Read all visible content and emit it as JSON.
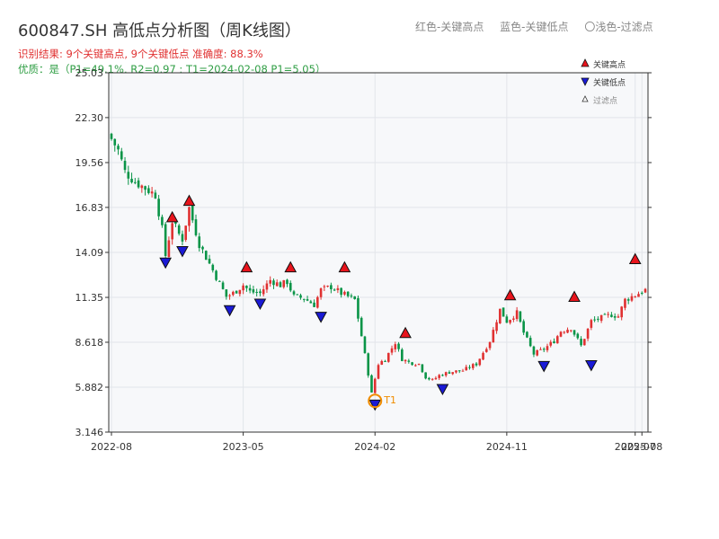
{
  "header": {
    "title": "600847.SH 高低点分析图（周K线图）",
    "result_line": "识别结果: 9个关键高点, 9个关键低点  准确度: 88.3%",
    "quality_line": "优质：是（P1=49.1%, R2=0.97 ; T1=2024-02-08 P1=5.05）"
  },
  "top_legend": {
    "red": "红色-关键高点",
    "blue": "蓝色-关键低点",
    "light": "〇浅色-过滤点"
  },
  "colors": {
    "up": "#e03131",
    "down": "#099447",
    "high_marker": "#e8141c",
    "low_marker": "#1a1ad6",
    "t1_ring": "#f08c00",
    "plot_bg": "#f7f8fa",
    "grid": "#e2e5ea",
    "axis": "#333333"
  },
  "chart_data": {
    "type": "candlestick",
    "x_tick_labels": [
      "2022-08",
      "2023-05",
      "2024-02",
      "2024-11",
      "2025-07",
      "2025-08"
    ],
    "x_ticks": [
      {
        "label": "2022-08",
        "week": 0
      },
      {
        "label": "2023-05",
        "week": 39
      },
      {
        "label": "2024-02",
        "week": 78
      },
      {
        "label": "2024-11",
        "week": 117
      },
      {
        "label": "2025-07",
        "week": 155
      },
      {
        "label": "2025-08",
        "week": 157
      }
    ],
    "x_range": [
      0,
      158
    ],
    "y_ticks": [
      "3.146",
      "5.882",
      "8.618",
      "11.35",
      "14.09",
      "16.83",
      "19.56",
      "22.30",
      "25.03"
    ],
    "ylim": [
      3.146,
      25.03
    ],
    "grid": true,
    "legend": {
      "position": "top-right",
      "items": [
        "关键高点",
        "关键低点",
        "过滤点"
      ]
    },
    "anchors": [
      [
        0,
        21.0
      ],
      [
        2,
        20.3
      ],
      [
        4,
        19.0
      ],
      [
        7,
        18.4
      ],
      [
        10,
        18.0
      ],
      [
        13,
        17.6
      ],
      [
        15,
        15.5
      ],
      [
        16,
        13.9
      ],
      [
        18,
        16.0
      ],
      [
        20,
        15.2
      ],
      [
        21,
        14.9
      ],
      [
        23,
        16.8
      ],
      [
        26,
        14.6
      ],
      [
        29,
        13.4
      ],
      [
        31,
        12.6
      ],
      [
        34,
        11.4
      ],
      [
        36,
        11.6
      ],
      [
        39,
        12.1
      ],
      [
        41,
        11.7
      ],
      [
        44,
        11.6
      ],
      [
        47,
        12.4
      ],
      [
        50,
        12.1
      ],
      [
        52,
        12.3
      ],
      [
        54,
        11.4
      ],
      [
        57,
        11.3
      ],
      [
        60,
        10.9
      ],
      [
        62,
        11.8
      ],
      [
        65,
        12.0
      ],
      [
        68,
        11.6
      ],
      [
        70,
        11.4
      ],
      [
        72,
        11.2
      ],
      [
        74,
        9.0
      ],
      [
        76,
        6.7
      ],
      [
        77,
        5.5
      ],
      [
        79,
        7.3
      ],
      [
        81,
        7.6
      ],
      [
        84,
        8.6
      ],
      [
        86,
        7.6
      ],
      [
        88,
        7.4
      ],
      [
        91,
        7.3
      ],
      [
        93,
        6.5
      ],
      [
        95,
        6.3
      ],
      [
        97,
        6.6
      ],
      [
        100,
        6.8
      ],
      [
        104,
        6.9
      ],
      [
        108,
        7.3
      ],
      [
        112,
        8.7
      ],
      [
        115,
        10.6
      ],
      [
        117,
        9.9
      ],
      [
        120,
        10.4
      ],
      [
        122,
        9.2
      ],
      [
        125,
        7.9
      ],
      [
        128,
        8.2
      ],
      [
        131,
        8.7
      ],
      [
        133,
        9.3
      ],
      [
        136,
        9.5
      ],
      [
        139,
        8.4
      ],
      [
        142,
        9.9
      ],
      [
        145,
        10.1
      ],
      [
        148,
        10.3
      ],
      [
        150,
        10.2
      ],
      [
        152,
        11.2
      ],
      [
        155,
        11.5
      ],
      [
        158,
        11.8
      ]
    ],
    "key_highs": [
      {
        "week": 18,
        "price": 15.9
      },
      {
        "week": 23,
        "price": 16.9
      },
      {
        "week": 40,
        "price": 12.85
      },
      {
        "week": 53,
        "price": 12.85
      },
      {
        "week": 69,
        "price": 12.85
      },
      {
        "week": 87,
        "price": 8.85
      },
      {
        "week": 118,
        "price": 11.15
      },
      {
        "week": 137,
        "price": 11.05
      },
      {
        "week": 155,
        "price": 13.35
      }
    ],
    "key_lows": [
      {
        "week": 16,
        "price": 13.8
      },
      {
        "week": 21,
        "price": 14.5
      },
      {
        "week": 35,
        "price": 10.9
      },
      {
        "week": 44,
        "price": 11.3
      },
      {
        "week": 62,
        "price": 10.5
      },
      {
        "week": 78,
        "price": 5.15
      },
      {
        "week": 98,
        "price": 6.1
      },
      {
        "week": 128,
        "price": 7.5
      },
      {
        "week": 142,
        "price": 7.55
      }
    ],
    "t1_point": {
      "week": 78,
      "price": 5.05,
      "label": "T1"
    }
  }
}
